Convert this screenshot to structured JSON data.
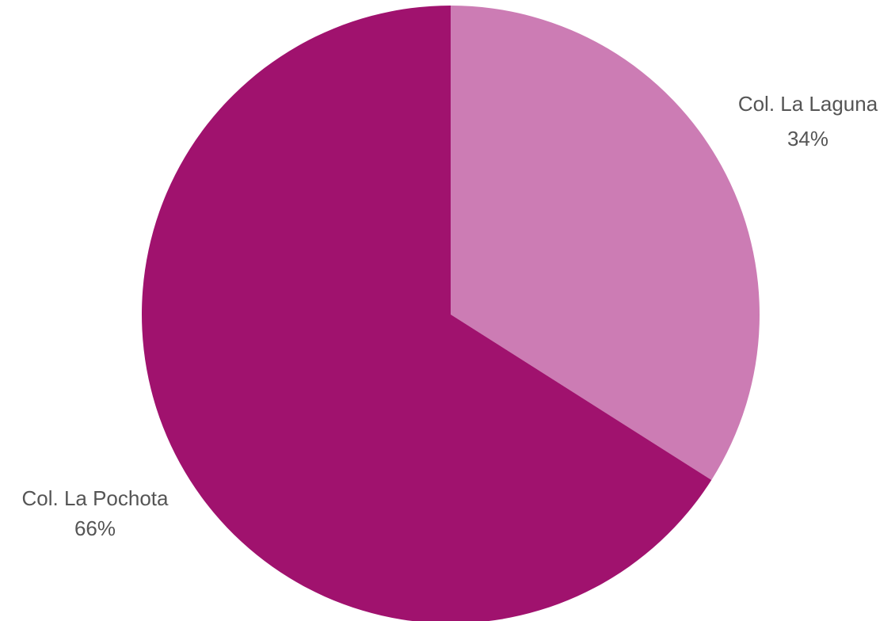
{
  "chart_data": {
    "type": "pie",
    "title": "",
    "slices": [
      {
        "label": "Col. La Laguna",
        "value": 34,
        "percent_label": "34%",
        "color": "#cc7cb4"
      },
      {
        "label": "Col. La Pochota",
        "value": 66,
        "percent_label": "66%",
        "color": "#a0126e"
      }
    ],
    "start_angle_deg": 0,
    "direction": "clockwise",
    "background": "#ffffff",
    "label_color": "#555555"
  }
}
